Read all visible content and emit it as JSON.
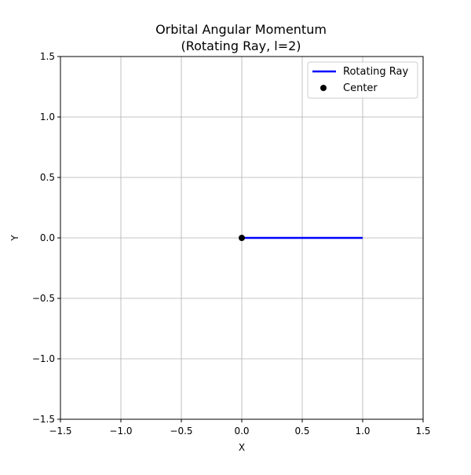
{
  "chart_data": {
    "type": "line",
    "title": [
      "Orbital Angular Momentum",
      "(Rotating Ray, l=2)"
    ],
    "xlabel": "X",
    "ylabel": "Y",
    "xlim": [
      -1.5,
      1.5
    ],
    "ylim": [
      -1.5,
      1.5
    ],
    "xticks": [
      -1.5,
      -1.0,
      -0.5,
      0.0,
      0.5,
      1.0,
      1.5
    ],
    "yticks": [
      -1.5,
      -1.0,
      -0.5,
      0.0,
      0.5,
      1.0,
      1.5
    ],
    "xtick_labels": [
      "−1.5",
      "−1.0",
      "−0.5",
      "0.0",
      "0.5",
      "1.0",
      "1.5"
    ],
    "ytick_labels": [
      "−1.5",
      "−1.0",
      "−0.5",
      "0.0",
      "0.5",
      "1.0",
      "1.5"
    ],
    "grid": true,
    "legend_position": "top-right",
    "series": [
      {
        "name": "Rotating Ray",
        "kind": "line",
        "color": "#0000ff",
        "x": [
          0.0,
          1.0
        ],
        "y": [
          0.0,
          0.0
        ]
      },
      {
        "name": "Center",
        "kind": "scatter",
        "color": "#000000",
        "x": [
          0.0
        ],
        "y": [
          0.0
        ]
      }
    ]
  }
}
